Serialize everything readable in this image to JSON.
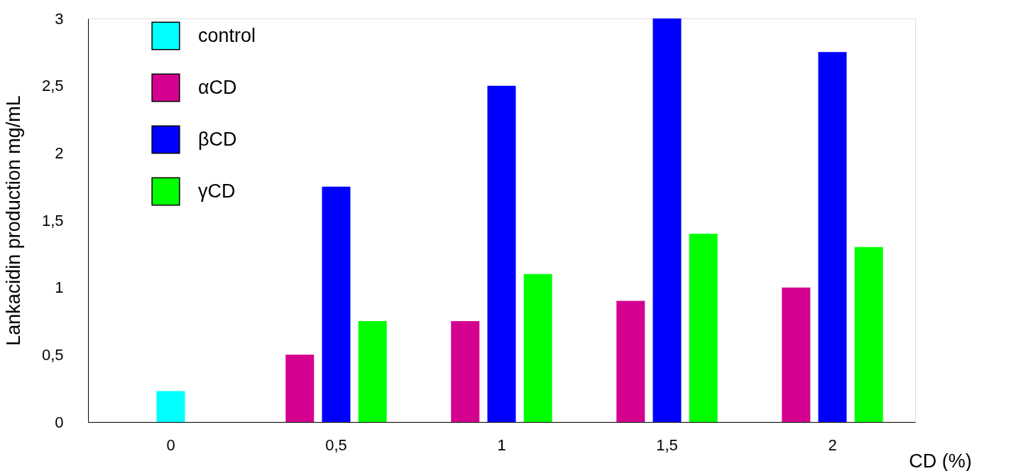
{
  "chart_data": {
    "type": "bar",
    "xlabel": "CD (%)",
    "ylabel": "Lankacidin production mg/mL",
    "categories": [
      "0",
      "0,5",
      "1",
      "1,5",
      "2"
    ],
    "series": [
      {
        "name": "control",
        "color": "#00ffff",
        "values": [
          0.23,
          null,
          null,
          null,
          null
        ]
      },
      {
        "name": "αCD",
        "color": "#d4008f",
        "values": [
          null,
          0.5,
          0.75,
          0.9,
          1.0
        ]
      },
      {
        "name": "βCD",
        "color": "#0000ff",
        "values": [
          null,
          1.75,
          2.5,
          3.0,
          2.75
        ]
      },
      {
        "name": "γCD",
        "color": "#00ff00",
        "values": [
          null,
          0.75,
          1.1,
          1.4,
          1.3
        ]
      }
    ],
    "ylim": [
      0,
      3
    ],
    "yticks": [
      0,
      {
        "value": 0.5,
        "label": "0,5"
      },
      1,
      {
        "value": 1.5,
        "label": "1,5"
      },
      2,
      {
        "value": 2.5,
        "label": "2,5"
      },
      3
    ],
    "grid": false,
    "legend": "top left"
  }
}
